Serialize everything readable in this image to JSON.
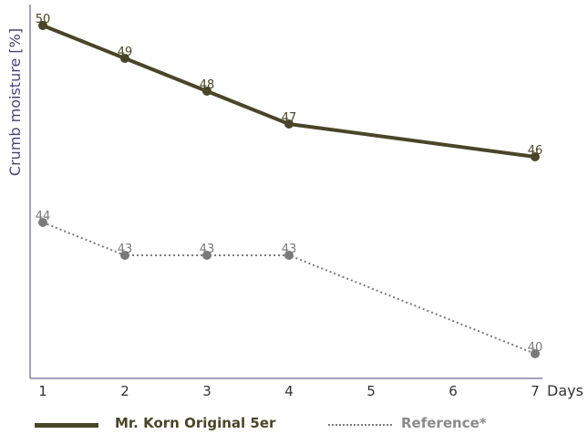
{
  "chart_data": {
    "type": "line",
    "xlabel": "Days",
    "ylabel": "Crumb moisture [%]",
    "x_ticks": [
      "1",
      "2",
      "3",
      "4",
      "5",
      "6",
      "7"
    ],
    "grid": false,
    "legend_position": "bottom",
    "series": [
      {
        "name": "Mr. Korn Original 5er",
        "color": "#4a4528",
        "line_style": "solid",
        "x": [
          1,
          2,
          3,
          4,
          7
        ],
        "y": [
          50,
          49,
          48,
          47,
          46
        ],
        "labels": [
          "50",
          "49",
          "48",
          "47",
          "46"
        ]
      },
      {
        "name": "Reference*",
        "color": "#7a7a7a",
        "line_style": "dotted",
        "x": [
          1,
          2,
          3,
          4,
          7
        ],
        "y": [
          44,
          43,
          43,
          43,
          40
        ],
        "labels": [
          "44",
          "43",
          "43",
          "43",
          "40"
        ]
      }
    ]
  },
  "colors": {
    "axis": "#4b3f7a",
    "series1": "#4a4528",
    "series2": "#7a7a7a"
  }
}
